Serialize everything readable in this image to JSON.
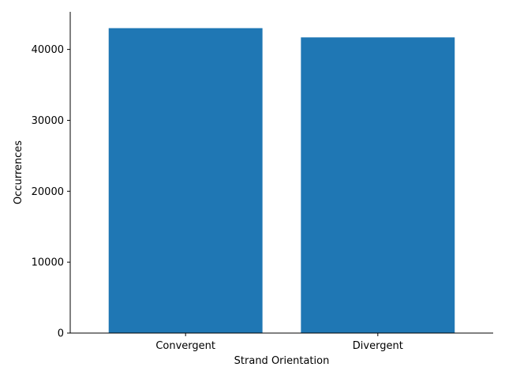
{
  "chart_data": {
    "type": "bar",
    "title": "",
    "xlabel": "Strand Orientation",
    "ylabel": "Occurrences",
    "categories": [
      "Convergent",
      "Divergent"
    ],
    "values": [
      43000,
      41700
    ],
    "ylim": [
      0,
      45300
    ],
    "yticks": [
      0,
      10000,
      20000,
      30000,
      40000
    ],
    "ytick_labels": [
      "0",
      "10000",
      "20000",
      "30000",
      "40000"
    ],
    "bar_color": "#1f77b4",
    "grid": false,
    "legend": "none",
    "spines": [
      "left",
      "bottom"
    ]
  }
}
